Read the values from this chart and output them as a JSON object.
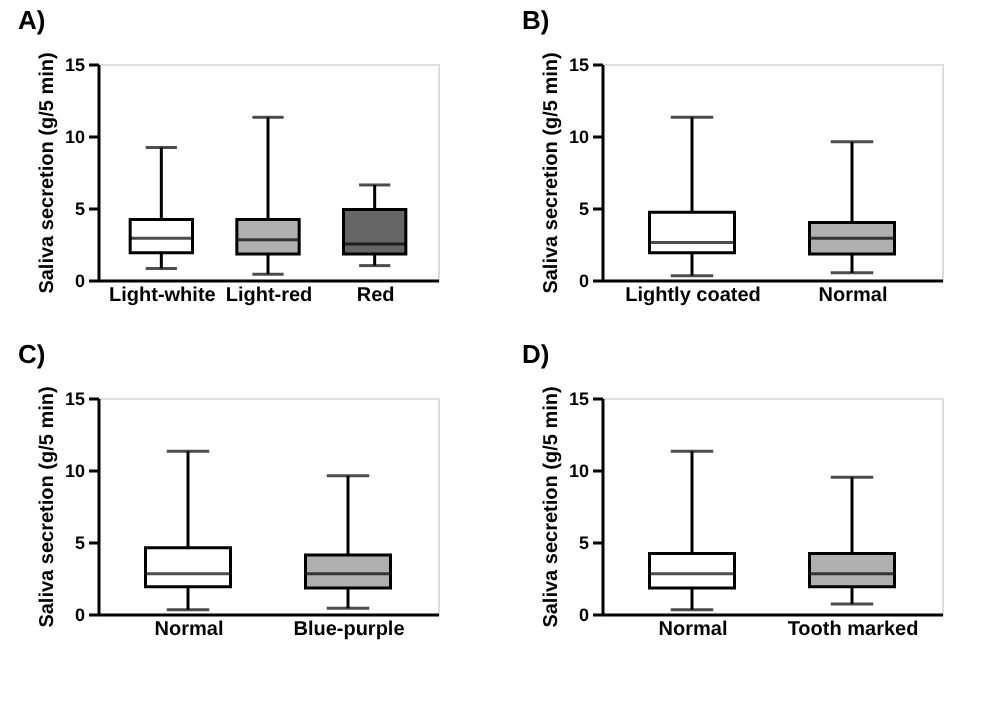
{
  "chart_data": [
    {
      "type": "box",
      "title": "A)",
      "ylabel": "Saliva secretion (g/5 min)",
      "categories": [
        "Light-white",
        "Light-red",
        "Red"
      ],
      "colors": [
        "#ffffff",
        "#b0b0b0",
        "#666666"
      ],
      "ylim": [
        0,
        15
      ],
      "yticks": [
        0,
        5,
        10,
        15
      ],
      "grid": false,
      "boxes": [
        {
          "low": 0.8,
          "q1": 1.9,
          "median": 2.9,
          "q3": 4.2,
          "high": 9.2
        },
        {
          "low": 0.4,
          "q1": 1.8,
          "median": 2.8,
          "q3": 4.2,
          "high": 11.3
        },
        {
          "low": 1.0,
          "q1": 1.8,
          "median": 2.5,
          "q3": 4.9,
          "high": 6.6
        }
      ]
    },
    {
      "type": "box",
      "title": "B)",
      "ylabel": "Saliva secretion (g/5 min)",
      "categories": [
        "Lightly coated",
        "Normal"
      ],
      "colors": [
        "#ffffff",
        "#b0b0b0"
      ],
      "ylim": [
        0,
        15
      ],
      "yticks": [
        0,
        5,
        10,
        15
      ],
      "grid": false,
      "boxes": [
        {
          "low": 0.3,
          "q1": 1.9,
          "median": 2.6,
          "q3": 4.7,
          "high": 11.3
        },
        {
          "low": 0.5,
          "q1": 1.8,
          "median": 2.9,
          "q3": 4.0,
          "high": 9.6
        }
      ]
    },
    {
      "type": "box",
      "title": "C)",
      "ylabel": "Saliva secretion (g/5 min)",
      "categories": [
        "Normal",
        "Blue-purple"
      ],
      "colors": [
        "#ffffff",
        "#b0b0b0"
      ],
      "ylim": [
        0,
        15
      ],
      "yticks": [
        0,
        5,
        10,
        15
      ],
      "grid": false,
      "boxes": [
        {
          "low": 0.3,
          "q1": 1.9,
          "median": 2.8,
          "q3": 4.6,
          "high": 11.3
        },
        {
          "low": 0.4,
          "q1": 1.8,
          "median": 2.8,
          "q3": 4.1,
          "high": 9.6
        }
      ]
    },
    {
      "type": "box",
      "title": "D)",
      "ylabel": "Saliva secretion (g/5 min)",
      "categories": [
        "Normal",
        "Tooth marked"
      ],
      "colors": [
        "#ffffff",
        "#b0b0b0"
      ],
      "ylim": [
        0,
        15
      ],
      "yticks": [
        0,
        5,
        10,
        15
      ],
      "grid": false,
      "boxes": [
        {
          "low": 0.3,
          "q1": 1.8,
          "median": 2.8,
          "q3": 4.2,
          "high": 11.3
        },
        {
          "low": 0.7,
          "q1": 1.9,
          "median": 2.8,
          "q3": 4.2,
          "high": 9.5
        }
      ]
    }
  ]
}
